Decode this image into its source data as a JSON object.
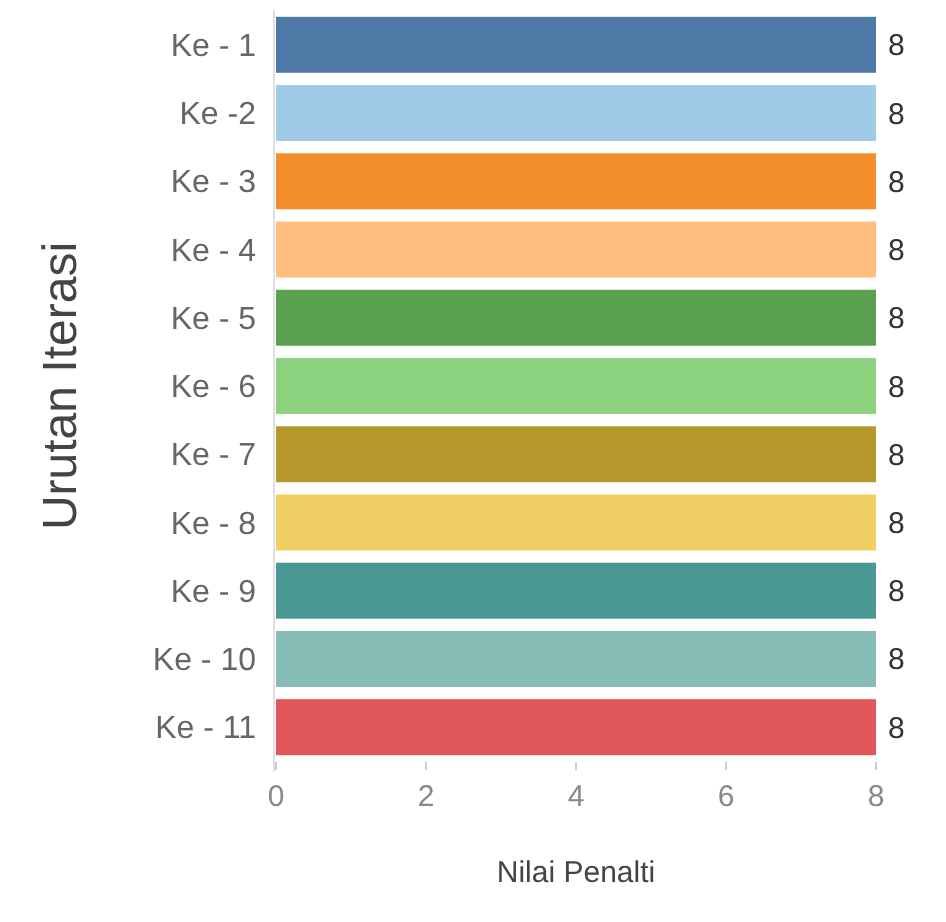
{
  "chart_data": {
    "type": "bar",
    "orientation": "horizontal",
    "xlabel": "Nilai Penalti",
    "ylabel": "Urutan Iterasi",
    "categories": [
      "Ke - 1",
      "Ke -2",
      "Ke - 3",
      "Ke - 4",
      "Ke - 5",
      "Ke - 6",
      "Ke - 7",
      "Ke - 8",
      "Ke - 9",
      "Ke - 10",
      "Ke - 11"
    ],
    "values": [
      8,
      8,
      8,
      8,
      8,
      8,
      8,
      8,
      8,
      8,
      8
    ],
    "colors": [
      "#4e79a7",
      "#a0cbe8",
      "#f28e2b",
      "#ffbe7d",
      "#59a14f",
      "#8cd17d",
      "#b6992d",
      "#f1ce63",
      "#499894",
      "#86bcb6",
      "#e15759"
    ],
    "xlim": [
      0,
      8
    ],
    "xticks": [
      0,
      2,
      4,
      6,
      8
    ],
    "data_labels": true,
    "grid": false
  }
}
